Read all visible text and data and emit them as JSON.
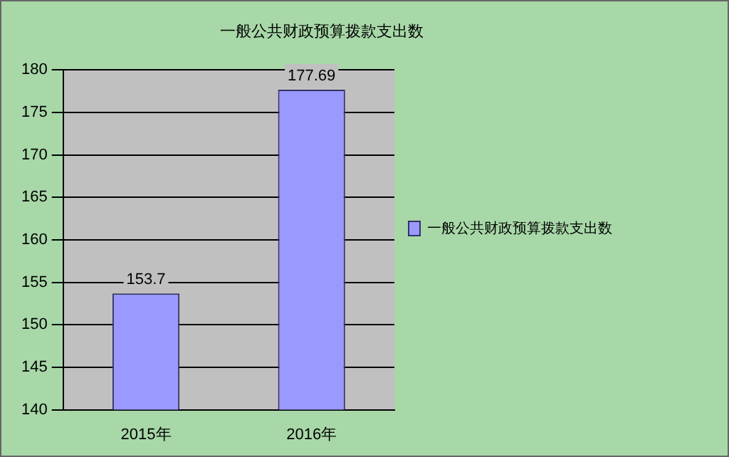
{
  "chart_data": {
    "type": "bar",
    "title": "一般公共财政预算拨款支出数",
    "categories": [
      "2015年",
      "2016年"
    ],
    "series": [
      {
        "name": "一般公共财政预算拨款支出数",
        "color": "#9999ff",
        "values": [
          153.7,
          177.69
        ]
      }
    ],
    "ylim": [
      140,
      180
    ],
    "yticks": [
      140,
      145,
      150,
      155,
      160,
      165,
      170,
      175,
      180
    ],
    "grid": "y",
    "legend": "right",
    "data_labels": true
  }
}
